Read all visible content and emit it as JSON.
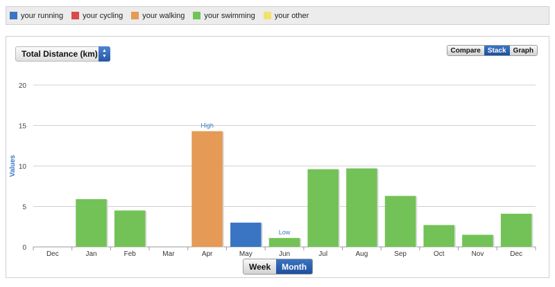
{
  "legend": [
    {
      "label": "your running",
      "color": "#3a75c4"
    },
    {
      "label": "your cycling",
      "color": "#d84b4b"
    },
    {
      "label": "your walking",
      "color": "#e59a55"
    },
    {
      "label": "your swimming",
      "color": "#73c257"
    },
    {
      "label": "your other",
      "color": "#f3e26a"
    }
  ],
  "metric_select": {
    "value": "Total Distance (km)"
  },
  "view_toggle": [
    "Compare",
    "Stack",
    "Graph"
  ],
  "view_active": "Stack",
  "period_toggle": [
    "Week",
    "Month"
  ],
  "period_active": "Month",
  "chart_data": {
    "type": "bar",
    "ylabel": "Values",
    "ylim": [
      0,
      20
    ],
    "yticks": [
      0,
      5,
      10,
      15,
      20
    ],
    "grid": true,
    "categories": [
      "Dec",
      "Jan",
      "Feb",
      "Mar",
      "Apr",
      "May",
      "Jun",
      "Jul",
      "Aug",
      "Sep",
      "Oct",
      "Nov",
      "Dec"
    ],
    "values": [
      0,
      5.9,
      4.5,
      0,
      14.3,
      3.0,
      1.1,
      9.6,
      9.7,
      6.3,
      2.7,
      1.5,
      4.1
    ],
    "bar_colors": [
      "#73c257",
      "#73c257",
      "#73c257",
      "#73c257",
      "#e59a55",
      "#3a75c4",
      "#73c257",
      "#73c257",
      "#73c257",
      "#73c257",
      "#73c257",
      "#73c257",
      "#73c257"
    ],
    "annotations": [
      {
        "label": "High",
        "category_index": 4
      },
      {
        "label": "Low",
        "category_index": 6
      }
    ]
  }
}
